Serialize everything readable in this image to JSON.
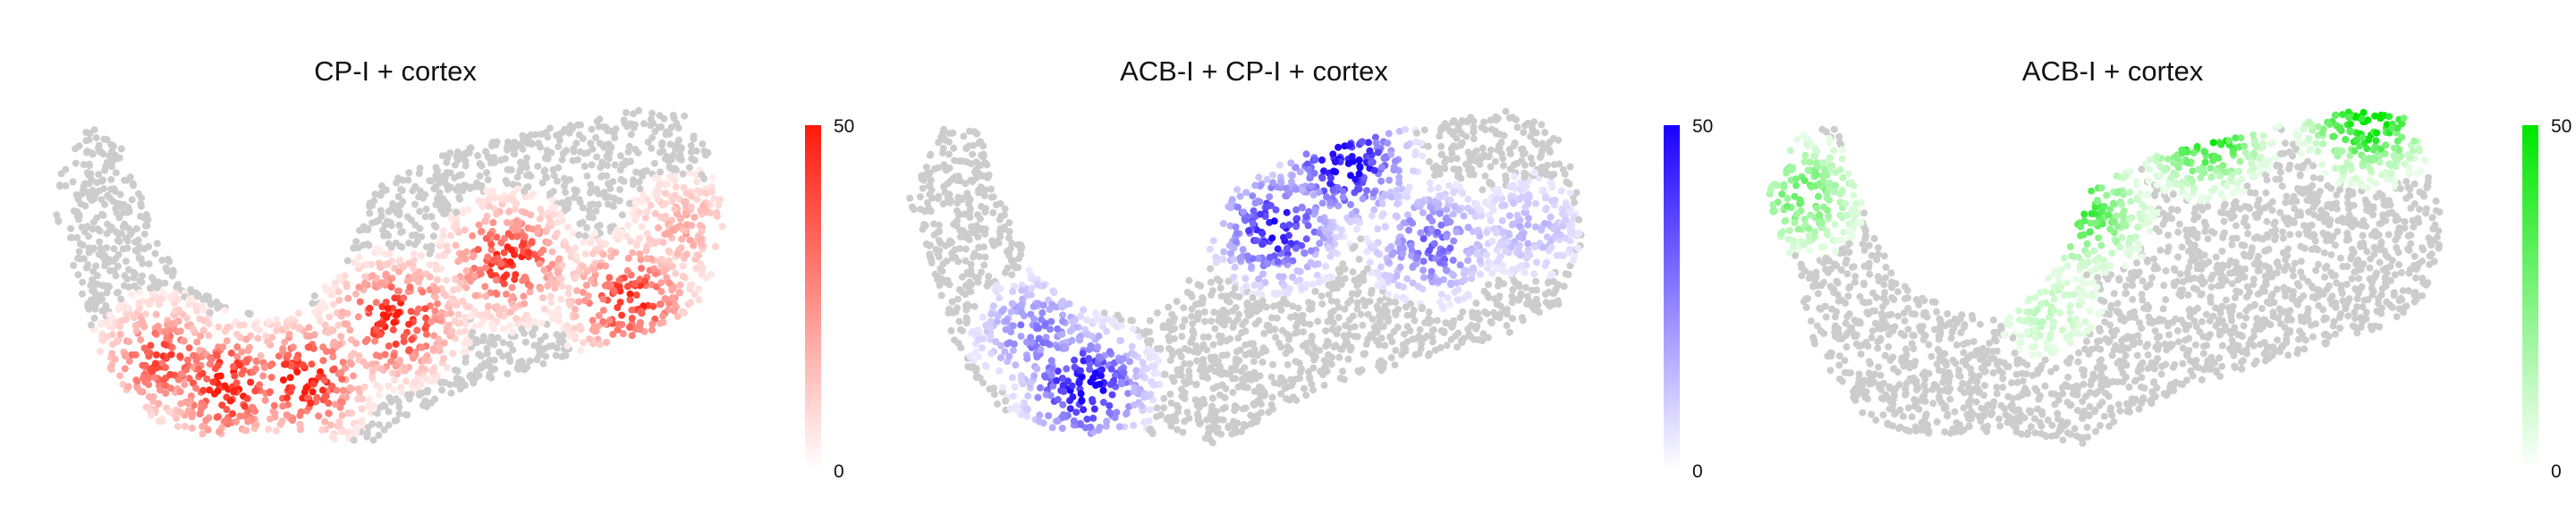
{
  "chart_data": [
    {
      "type": "scatter",
      "title": "CP-I + cortex",
      "accent_color": "#ff1a0a",
      "background_point_color": "#cccccc",
      "colorbar": {
        "min": 0,
        "max": 50,
        "ticks": [
          "50",
          "0"
        ]
      },
      "grid": false,
      "hotspots": [
        {
          "x": 0.16,
          "y": 0.7,
          "level": 38
        },
        {
          "x": 0.25,
          "y": 0.78,
          "level": 50
        },
        {
          "x": 0.36,
          "y": 0.76,
          "level": 50
        },
        {
          "x": 0.49,
          "y": 0.58,
          "level": 50
        },
        {
          "x": 0.65,
          "y": 0.4,
          "level": 44
        },
        {
          "x": 0.82,
          "y": 0.52,
          "level": 45
        },
        {
          "x": 0.9,
          "y": 0.3,
          "level": 18
        }
      ]
    },
    {
      "type": "scatter",
      "title": "ACB-I + CP-I + cortex",
      "accent_color": "#1a00ff",
      "background_point_color": "#cccccc",
      "colorbar": {
        "min": 0,
        "max": 50,
        "ticks": [
          "50",
          "0"
        ]
      },
      "grid": false,
      "hotspots": [
        {
          "x": 0.18,
          "y": 0.62,
          "level": 26
        },
        {
          "x": 0.25,
          "y": 0.78,
          "level": 48
        },
        {
          "x": 0.52,
          "y": 0.3,
          "level": 44
        },
        {
          "x": 0.62,
          "y": 0.1,
          "level": 50
        },
        {
          "x": 0.74,
          "y": 0.35,
          "level": 30
        },
        {
          "x": 0.88,
          "y": 0.3,
          "level": 14
        }
      ]
    },
    {
      "type": "scatter",
      "title": "ACB-I + cortex",
      "accent_color": "#00e600",
      "background_point_color": "#cccccc",
      "colorbar": {
        "min": 0,
        "max": 50,
        "ticks": [
          "50",
          "0"
        ]
      },
      "grid": false,
      "hotspots": [
        {
          "x": 0.05,
          "y": 0.2,
          "level": 28
        },
        {
          "x": 0.62,
          "y": 0.0,
          "level": 48
        },
        {
          "x": 0.85,
          "y": -0.04,
          "level": 50
        },
        {
          "x": 0.45,
          "y": 0.25,
          "level": 34
        },
        {
          "x": 0.4,
          "y": 0.55,
          "level": 12
        }
      ]
    }
  ]
}
